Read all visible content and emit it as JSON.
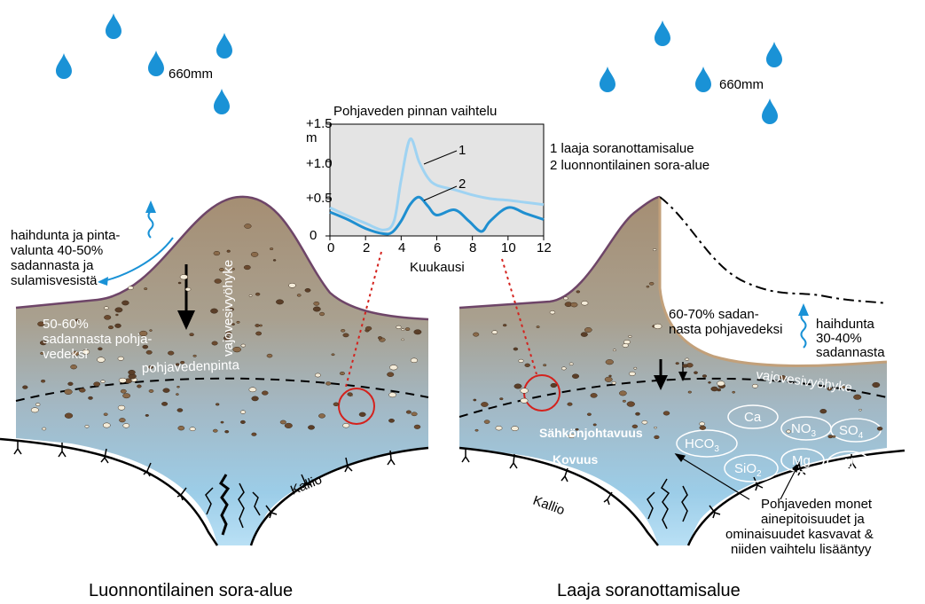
{
  "rain": {
    "left_amount": "660mm",
    "right_amount": "660mm"
  },
  "inset": {
    "title": "Pohjaveden pinnan vaihtelu",
    "y_unit": "m",
    "y_ticks": [
      "+1.5",
      "+1.0",
      "+0.5",
      "0"
    ],
    "x_ticks": [
      "0",
      "2",
      "4",
      "6",
      "8",
      "10",
      "12"
    ],
    "xlabel": "Kuukausi",
    "curve_label_1": "1",
    "curve_label_2": "2",
    "legend": [
      "1 laaja soranottamisalue",
      "2 luonnontilainen sora-alue"
    ]
  },
  "chart_data": {
    "type": "line",
    "title": "Pohjaveden pinnan vaihtelu",
    "xlabel": "Kuukausi",
    "ylabel": "m",
    "xlim": [
      0,
      12
    ],
    "ylim": [
      0,
      1.5
    ],
    "series": [
      {
        "name": "1 laaja soranottamisalue",
        "color": "#9fd3f2",
        "x": [
          0,
          1,
          2,
          3,
          3.6,
          4,
          4.5,
          5,
          5.5,
          6,
          7,
          8,
          9,
          10,
          11,
          12
        ],
        "y": [
          0.38,
          0.27,
          0.17,
          0.08,
          0.2,
          0.75,
          1.3,
          1.0,
          0.78,
          0.68,
          0.62,
          0.55,
          0.5,
          0.48,
          0.45,
          0.42
        ]
      },
      {
        "name": "2 luonnontilainen sora-alue",
        "color": "#1f8fd0",
        "x": [
          0,
          1,
          2,
          3,
          3.5,
          4,
          4.5,
          5,
          5.5,
          6,
          7,
          7.8,
          8.5,
          9,
          10,
          11,
          12
        ],
        "y": [
          0.32,
          0.22,
          0.1,
          0.03,
          0.05,
          0.2,
          0.42,
          0.52,
          0.4,
          0.28,
          0.35,
          0.2,
          0.06,
          0.2,
          0.38,
          0.3,
          0.22
        ]
      }
    ]
  },
  "left": {
    "evap_text": [
      "haihdunta ja pinta-",
      "valunta 40-50%",
      "sadannasta ja",
      "sulamisvesistä"
    ],
    "recharge_text": [
      "50-60%",
      "sadannasta pohja-",
      "vedeksi"
    ],
    "vadose_label": "vajovesivyöhyke",
    "water_table_label": "pohjavedenpinta",
    "bedrock_label": "Kallio",
    "caption": "Luonnontilainen sora-alue"
  },
  "right": {
    "recharge_text": [
      "60-70% sadan-",
      "nasta pohjavedeksi"
    ],
    "evap_text": [
      "haihdunta",
      "30-40%",
      "sadannasta"
    ],
    "vadose_label": "vajovesivyöhyke",
    "ions": [
      "Ca",
      "NO3",
      "SO4",
      "HCO3",
      "Mg",
      "SiO2",
      "Al"
    ],
    "conductivity_label": "Sähkönjohtavuus",
    "hardness_label": "Kovuus",
    "bedrock_label": "Kallio",
    "note": [
      "Pohjaveden monet",
      "ainepitoisuudet ja",
      "ominaisuudet kasvavat &",
      "niiden vaihtelu lisääntyy"
    ],
    "caption": "Laaja soranottamisalue"
  }
}
